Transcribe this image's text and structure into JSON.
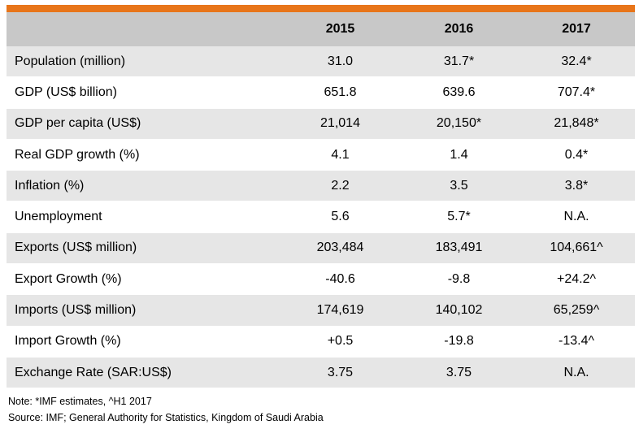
{
  "table": {
    "headers": [
      "",
      "2015",
      "2016",
      "2017"
    ],
    "rows": [
      [
        "Population (million)",
        "31.0",
        "31.7*",
        "32.4*"
      ],
      [
        "GDP (US$ billion)",
        "651.8",
        "639.6",
        "707.4*"
      ],
      [
        "GDP per capita (US$)",
        "21,014",
        "20,150*",
        "21,848*"
      ],
      [
        "Real GDP growth (%)",
        "4.1",
        "1.4",
        "0.4*"
      ],
      [
        "Inflation (%)",
        "2.2",
        "3.5",
        "3.8*"
      ],
      [
        "Unemployment",
        "5.6",
        "5.7*",
        "N.A."
      ],
      [
        "Exports (US$ million)",
        "203,484",
        "183,491",
        "104,661^"
      ],
      [
        "Export Growth (%)",
        "-40.6",
        "-9.8",
        "+24.2^"
      ],
      [
        "Imports (US$ million)",
        "174,619",
        "140,102",
        "65,259^"
      ],
      [
        "Import Growth (%)",
        "+0.5",
        "-19.8",
        "-13.4^"
      ],
      [
        "Exchange Rate (SAR:US$)",
        "3.75",
        "3.75",
        "N.A."
      ]
    ]
  },
  "notes": {
    "note": "Note: *IMF estimates, ^H1 2017",
    "source": "Source: IMF; General Authority for Statistics, Kingdom of Saudi Arabia"
  },
  "colors": {
    "accent_bar": "#e8751a",
    "header_bg": "#c8c8c8",
    "row_alt_bg": "#e6e6e6"
  }
}
